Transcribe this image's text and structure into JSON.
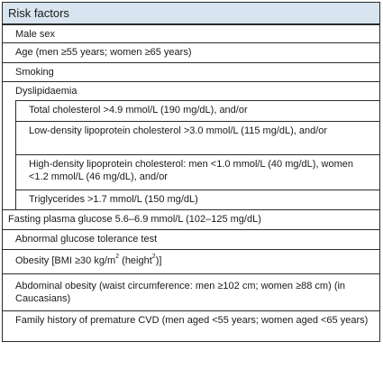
{
  "table": {
    "header": "Risk factors",
    "rows": [
      {
        "text": "Male sex"
      },
      {
        "text": "Age (men ≥55 years; women ≥65 years)"
      },
      {
        "text": "Smoking"
      },
      {
        "text": "Dyslipidaemia"
      },
      {
        "text": "Total cholesterol >4.9 mmol/L (190 mg/dL), and/or"
      },
      {
        "text": "Low-density lipoprotein cholesterol >3.0 mmol/L (115 mg/dL), and/or"
      },
      {
        "text": "High-density lipoprotein cholesterol: men <1.0 mmol/L (40 mg/dL), women <1.2 mmol/L (46 mg/dL), and/or"
      },
      {
        "text": "Triglycerides >1.7 mmol/L (150 mg/dL)"
      },
      {
        "text": "Fasting plasma glucose 5.6–6.9 mmol/L (102–125 mg/dL)"
      },
      {
        "text": "Abnormal glucose tolerance test"
      },
      {
        "text_pre": "Obesity [BMI ≥30 kg/m",
        "sup1": "2",
        "text_mid": " (height",
        "sup2": "2",
        "text_post": ")]"
      },
      {
        "text": "Abdominal obesity (waist circumference: men ≥102 cm; women ≥88 cm) (in Caucasians)"
      },
      {
        "text": "Family history of premature CVD (men aged <55 years; women aged <65 years)"
      }
    ]
  }
}
